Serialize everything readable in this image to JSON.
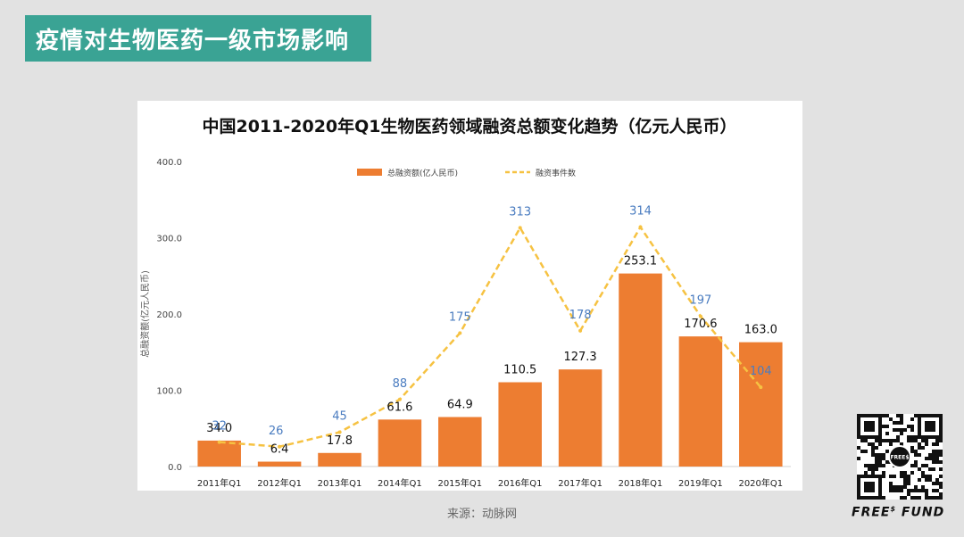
{
  "banner": {
    "title": "疫情对生物医药一级市场影响"
  },
  "chart_data": {
    "type": "bar+line",
    "title": "中国2011-2020年Q1生物医药领域融资总额变化趋势（亿元人民币）",
    "ylabel": "总融资额(亿元人民币)",
    "ylim": [
      0,
      400
    ],
    "yticks": [
      "0.0",
      "100.0",
      "200.0",
      "300.0",
      "400.0"
    ],
    "categories": [
      "2011年Q1",
      "2012年Q1",
      "2013年Q1",
      "2014年Q1",
      "2015年Q1",
      "2016年Q1",
      "2017年Q1",
      "2018年Q1",
      "2019年Q1",
      "2020年Q1"
    ],
    "series": [
      {
        "name": "总融资额(亿人民币)",
        "kind": "bar",
        "color": "#ed7d31",
        "values": [
          34.0,
          6.4,
          17.8,
          61.6,
          64.9,
          110.5,
          127.3,
          253.1,
          170.6,
          163.0
        ],
        "labels": [
          "34.0",
          "6.4",
          "17.8",
          "61.6",
          "64.9",
          "110.5",
          "127.3",
          "253.1",
          "170.6",
          "163.0"
        ]
      },
      {
        "name": "融资事件数",
        "kind": "line",
        "color": "#f6c242",
        "label_color": "#4a7cc0",
        "values": [
          32,
          26,
          45,
          88,
          175,
          313,
          178,
          314,
          197,
          104
        ],
        "labels": [
          "32",
          "26",
          "45",
          "88",
          "175",
          "313",
          "178",
          "314",
          "197",
          "104"
        ]
      }
    ],
    "legend": "top-center"
  },
  "source": "来源：动脉网",
  "brand": {
    "name": "FREE",
    "sup": "$",
    "suffix": " FUND"
  },
  "qr": {
    "center_text": "FREE$"
  }
}
